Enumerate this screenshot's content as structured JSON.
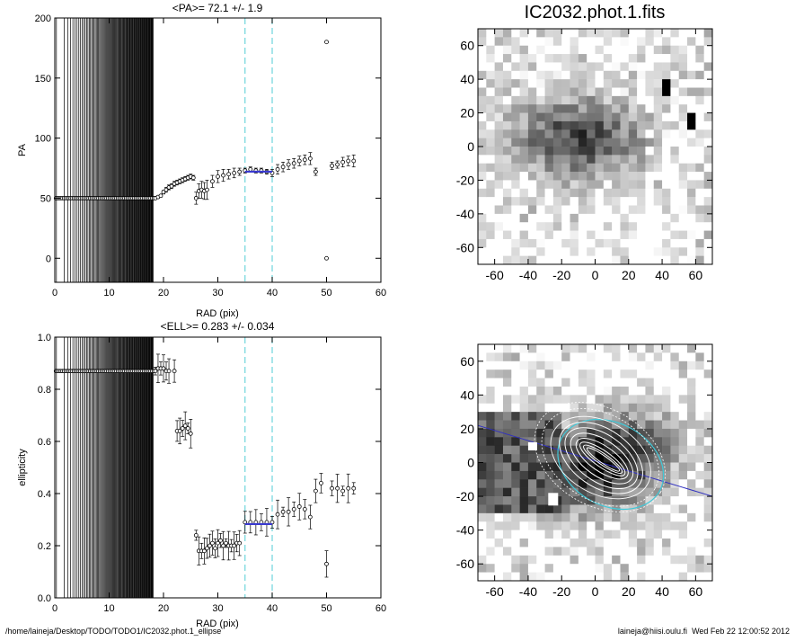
{
  "footer": {
    "path": "/home/laineja/Desktop/TODO/TODO1/IC2032.phot.1_ellipse",
    "user_host": "laineja@hiisi.oulu.fi",
    "timestamp": "Wed Feb 22 12:00:52 2012"
  },
  "chart_data": [
    {
      "type": "scatter",
      "title": "<PA>=  72.1 +/-   1.9",
      "xlabel": "RAD (pix)",
      "ylabel": "PA",
      "xlim": [
        0,
        60
      ],
      "ylim": [
        -20,
        200
      ],
      "xticks": [
        0,
        10,
        20,
        30,
        40,
        50,
        60
      ],
      "yticks": [
        0,
        50,
        100,
        150,
        200
      ],
      "fit_range": [
        35,
        40
      ],
      "fit_value": 72.1,
      "colors": {
        "fit": "#3a3ad0",
        "range_lines": "#6fd6dc"
      },
      "series": [
        {
          "x": [
            18.5,
            19.0,
            19.5,
            20.0,
            20.5,
            21.0,
            21.5,
            22.0,
            22.5,
            23.0,
            23.5,
            24.0,
            24.5,
            25.0,
            25.5,
            26.0,
            26.5,
            27.0,
            27.5,
            28.0,
            29.0,
            30.0,
            31.0,
            32.0,
            33.0,
            34.0,
            35.0,
            36.0,
            37.0,
            38.0,
            39.0,
            40.0,
            41.0,
            42.0,
            43.0,
            44.0,
            45.0,
            46.0,
            47.0,
            48.0,
            50.0,
            50.0,
            51.0,
            52.0,
            53.0,
            54.0,
            55.0
          ],
          "y": [
            50,
            51,
            52,
            55,
            57,
            59,
            60,
            62,
            63,
            64,
            65,
            66,
            67,
            68,
            67,
            50,
            56,
            57,
            56,
            57,
            64,
            68,
            69,
            70,
            71,
            72,
            73,
            74,
            73,
            73,
            72,
            71,
            74,
            76,
            78,
            79,
            81,
            82,
            83,
            72,
            180,
            0,
            77,
            78,
            80,
            81,
            81
          ],
          "err": [
            1,
            1,
            1,
            1.5,
            2,
            2,
            2,
            2,
            2,
            2,
            2,
            2,
            2,
            2,
            2,
            5,
            6,
            7,
            7,
            8,
            5,
            5,
            5,
            4,
            4,
            3,
            2,
            2,
            2,
            2,
            2,
            3,
            4,
            4,
            4,
            4,
            4,
            4,
            5,
            3,
            0,
            0,
            3,
            3,
            4,
            4,
            5
          ]
        }
      ]
    },
    {
      "type": "scatter",
      "title": "<ELL>= 0.283 +/-  0.034",
      "xlabel": "RAD (pix)",
      "ylabel": "ellipticity",
      "xlim": [
        0,
        60
      ],
      "ylim": [
        0.0,
        1.0
      ],
      "xticks": [
        0,
        10,
        20,
        30,
        40,
        50,
        60
      ],
      "yticks": [
        "0.0",
        "0.2",
        "0.4",
        "0.6",
        "0.8",
        "1.0"
      ],
      "fit_range": [
        35,
        40
      ],
      "fit_value": 0.283,
      "colors": {
        "fit": "#3a3ad0",
        "range_lines": "#6fd6dc"
      },
      "series": [
        {
          "x": [
            18.5,
            19.0,
            19.5,
            20.0,
            20.5,
            21.0,
            22.0,
            22.5,
            23.0,
            23.5,
            24.0,
            24.5,
            25.0,
            26.0,
            26.5,
            27.0,
            27.5,
            28.0,
            28.5,
            29.0,
            29.5,
            30.0,
            30.5,
            31.0,
            31.5,
            32.0,
            32.5,
            33.0,
            33.5,
            34.0,
            35.0,
            36.0,
            37.0,
            38.0,
            39.0,
            40.0,
            41.0,
            42.0,
            43.0,
            44.0,
            45.0,
            46.0,
            47.0,
            48.0,
            49.0,
            50.0,
            51.0,
            52.0,
            53.0,
            54.0,
            55.0
          ],
          "y": [
            0.87,
            0.88,
            0.88,
            0.88,
            0.87,
            0.87,
            0.87,
            0.64,
            0.64,
            0.65,
            0.66,
            0.65,
            0.63,
            0.24,
            0.18,
            0.18,
            0.18,
            0.19,
            0.2,
            0.21,
            0.19,
            0.21,
            0.22,
            0.2,
            0.21,
            0.2,
            0.2,
            0.2,
            0.21,
            0.21,
            0.29,
            0.29,
            0.29,
            0.29,
            0.29,
            0.29,
            0.32,
            0.33,
            0.33,
            0.34,
            0.35,
            0.34,
            0.31,
            0.41,
            0.44,
            0.13,
            0.42,
            0.42,
            0.41,
            0.42,
            0.42
          ]
        }
      ]
    },
    {
      "type": "heatmap",
      "title": "IC2032.phot.1.fits",
      "xlim": [
        -70,
        70
      ],
      "ylim": [
        -70,
        70
      ],
      "xticks": [
        -60,
        -40,
        -20,
        0,
        20,
        40,
        60
      ],
      "yticks": [
        -60,
        -40,
        -20,
        0,
        20,
        40,
        60
      ],
      "features": {
        "galaxy_center": [
          -10,
          5
        ],
        "bright_stars": [
          [
            42,
            35
          ],
          [
            58,
            15
          ]
        ]
      }
    },
    {
      "type": "heatmap",
      "title": "",
      "xlim": [
        -70,
        70
      ],
      "ylim": [
        -70,
        70
      ],
      "xticks": [
        -60,
        -40,
        -20,
        0,
        20,
        40,
        60
      ],
      "yticks": [
        -60,
        -40,
        -20,
        0,
        20,
        40,
        60
      ],
      "colors": {
        "overlay_line": "#3030c0",
        "outer_ellipse": "#40c8d8",
        "inner_ellipses": "#ffffff"
      },
      "features": {
        "galaxy_center": [
          5,
          0
        ],
        "position_angle": 162
      }
    }
  ]
}
